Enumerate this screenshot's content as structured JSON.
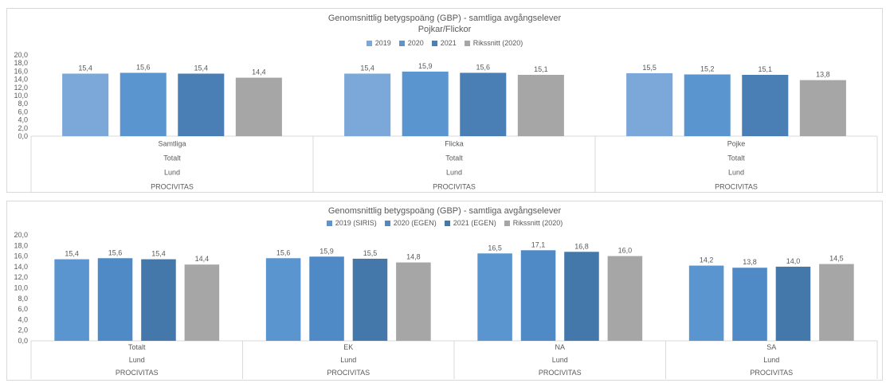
{
  "chart_data": [
    {
      "type": "bar",
      "title": "Genomsnittlig betygspoäng (GBP) - samtliga avgångselever",
      "subtitle": "Pojkar/Flickor",
      "legend_placement": "top",
      "grid": false,
      "ylim": [
        0,
        20
      ],
      "yticks": [
        "20,0",
        "18,0",
        "16,0",
        "14,0",
        "12,0",
        "10,0",
        "8,0",
        "6,0",
        "4,0",
        "2,0",
        "0,0"
      ],
      "categories": [
        {
          "levels": [
            "Samtliga",
            "Totalt",
            "Lund",
            "PROCIVITAS"
          ]
        },
        {
          "levels": [
            "Flicka",
            "Totalt",
            "Lund",
            "PROCIVITAS"
          ]
        },
        {
          "levels": [
            "Pojke",
            "Totalt",
            "Lund",
            "PROCIVITAS"
          ]
        }
      ],
      "series": [
        {
          "name": "2019",
          "color": "#7ba7d9",
          "values": [
            15.4,
            15.4,
            15.5
          ],
          "labels": [
            "15,4",
            "15,4",
            "15,5"
          ]
        },
        {
          "name": "2020",
          "color": "#5b95cf",
          "values": [
            15.6,
            15.9,
            15.2
          ],
          "labels": [
            "15,6",
            "15,9",
            "15,2"
          ]
        },
        {
          "name": "2021",
          "color": "#4a7fb5",
          "values": [
            15.4,
            15.6,
            15.1
          ],
          "labels": [
            "15,4",
            "15,6",
            "15,1"
          ]
        },
        {
          "name": "Rikssnitt (2020)",
          "color": "#a6a6a6",
          "values": [
            14.4,
            15.1,
            13.8
          ],
          "labels": [
            "14,4",
            "15,1",
            "13,8"
          ]
        }
      ]
    },
    {
      "type": "bar",
      "title": "Genomsnittlig betygspoäng (GBP) - samtliga avgångselever",
      "subtitle": "",
      "legend_placement": "top",
      "grid": false,
      "ylim": [
        0,
        20
      ],
      "yticks": [
        "20,0",
        "18,0",
        "16,0",
        "14,0",
        "12,0",
        "10,0",
        "8,0",
        "6,0",
        "4,0",
        "2,0",
        "0,0"
      ],
      "categories": [
        {
          "levels": [
            "Totalt",
            "Lund",
            "PROCIVITAS"
          ]
        },
        {
          "levels": [
            "EK",
            "Lund",
            "PROCIVITAS"
          ]
        },
        {
          "levels": [
            "NA",
            "Lund",
            "PROCIVITAS"
          ]
        },
        {
          "levels": [
            "SA",
            "Lund",
            "PROCIVITAS"
          ]
        }
      ],
      "series": [
        {
          "name": "2019 (SIRIS)",
          "color": "#5b95cf",
          "values": [
            15.4,
            15.6,
            16.5,
            14.2
          ],
          "labels": [
            "15,4",
            "15,6",
            "16,5",
            "14,2"
          ]
        },
        {
          "name": "2020 (EGEN)",
          "color": "#4f8ac6",
          "values": [
            15.6,
            15.9,
            17.1,
            13.8
          ],
          "labels": [
            "15,6",
            "15,9",
            "17,1",
            "13,8"
          ]
        },
        {
          "name": "2021 (EGEN)",
          "color": "#4477aa",
          "values": [
            15.4,
            15.5,
            16.8,
            14.0
          ],
          "labels": [
            "15,4",
            "15,5",
            "16,8",
            "14,0"
          ]
        },
        {
          "name": "Rikssnitt (2020)",
          "color": "#a6a6a6",
          "values": [
            14.4,
            14.8,
            16.0,
            14.5
          ],
          "labels": [
            "14,4",
            "14,8",
            "16,0",
            "14,5"
          ]
        }
      ]
    }
  ]
}
